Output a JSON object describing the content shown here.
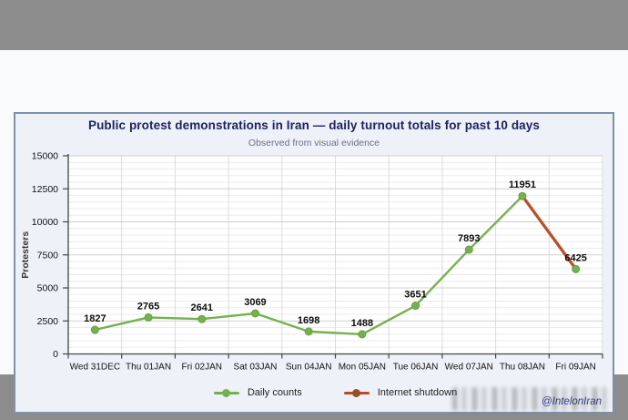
{
  "page": {
    "credit": "@IntelonIran"
  },
  "colors": {
    "daily_line": "#76b14f",
    "shutdown_line": "#c14a24",
    "title": "#1b2368",
    "frame_border": "#7e90aa",
    "outer_background": "#8c8c8c"
  },
  "chart_data": {
    "type": "line",
    "title": "Public protest demonstrations in Iran — daily turnout totals for past 10 days",
    "subtitle": "Observed from visual evidence",
    "ylabel": "Protesters",
    "xlabel": "",
    "categories": [
      "Wed 31DEC",
      "Thu 01JAN",
      "Fri 02JAN",
      "Sat 03JAN",
      "Sun 04JAN",
      "Mon 05JAN",
      "Tue 06JAN",
      "Wed 07JAN",
      "Thu 08JAN",
      "Fri 09JAN"
    ],
    "values": [
      1827,
      2765,
      2641,
      3069,
      1698,
      1488,
      3651,
      7893,
      11951,
      6425
    ],
    "ylim": [
      0,
      15000
    ],
    "y_major_ticks": [
      0,
      2500,
      5000,
      7500,
      10000,
      12500,
      15000
    ],
    "y_minor_step": 500,
    "grid": true,
    "legend_position": "bottom",
    "series": [
      {
        "name": "Daily counts",
        "color": "#76b14f",
        "point_indices": [
          0,
          1,
          2,
          3,
          4,
          5,
          6,
          7,
          8,
          9
        ]
      },
      {
        "name": "Internet shutdown",
        "color": "#c14a24",
        "segment": {
          "from_index": 8,
          "to_index": 9
        }
      }
    ],
    "legend": [
      {
        "label": "Daily counts",
        "color": "#76b14f",
        "dot_color": "#76b14f"
      },
      {
        "label": "Internet shutdown",
        "color": "#c14a24",
        "dot_color": "#8d5429"
      }
    ]
  }
}
